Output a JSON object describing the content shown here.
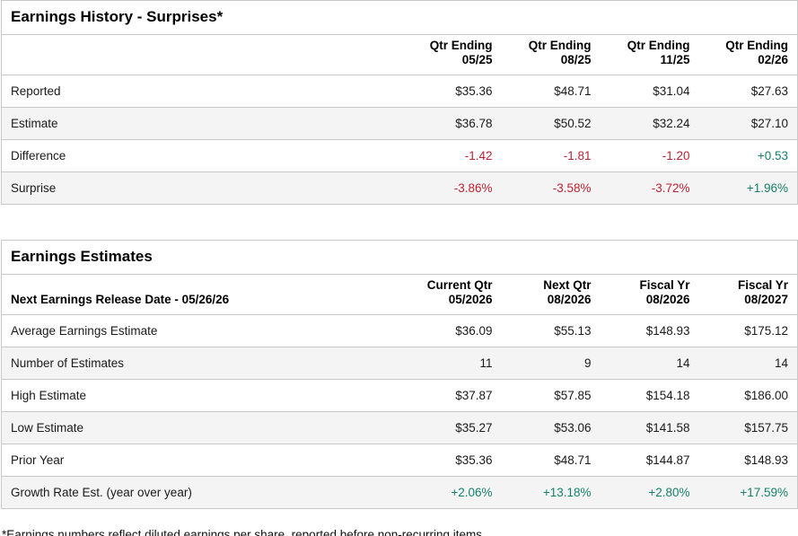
{
  "colors": {
    "positive": "#15806a",
    "negative": "#bf2333",
    "row_alt_background": "#f4f4f4",
    "border": "#c9c9c9"
  },
  "tables": [
    {
      "title": "Earnings History - Surprises*",
      "header_label": "",
      "columns": [
        {
          "line1": "Qtr Ending",
          "line2": "05/25"
        },
        {
          "line1": "Qtr Ending",
          "line2": "08/25"
        },
        {
          "line1": "Qtr Ending",
          "line2": "11/25"
        },
        {
          "line1": "Qtr Ending",
          "line2": "02/26"
        }
      ],
      "rows": [
        {
          "label": "Reported",
          "values": [
            "$35.36",
            "$48.71",
            "$31.04",
            "$27.63"
          ],
          "tones": [
            "",
            "",
            "",
            ""
          ]
        },
        {
          "label": "Estimate",
          "values": [
            "$36.78",
            "$50.52",
            "$32.24",
            "$27.10"
          ],
          "tones": [
            "",
            "",
            "",
            ""
          ]
        },
        {
          "label": "Difference",
          "values": [
            "-1.42",
            "-1.81",
            "-1.20",
            "+0.53"
          ],
          "tones": [
            "neg",
            "neg",
            "neg",
            "pos"
          ]
        },
        {
          "label": "Surprise",
          "values": [
            "-3.86%",
            "-3.58%",
            "-3.72%",
            "+1.96%"
          ],
          "tones": [
            "neg",
            "neg",
            "neg",
            "pos"
          ]
        }
      ]
    },
    {
      "title": "Earnings Estimates",
      "header_label": "Next Earnings Release Date - 05/26/26",
      "columns": [
        {
          "line1": "Current Qtr",
          "line2": "05/2026"
        },
        {
          "line1": "Next Qtr",
          "line2": "08/2026"
        },
        {
          "line1": "Fiscal Yr",
          "line2": "08/2026"
        },
        {
          "line1": "Fiscal Yr",
          "line2": "08/2027"
        }
      ],
      "rows": [
        {
          "label": "Average Earnings Estimate",
          "values": [
            "$36.09",
            "$55.13",
            "$148.93",
            "$175.12"
          ],
          "tones": [
            "",
            "",
            "",
            ""
          ]
        },
        {
          "label": "Number of Estimates",
          "values": [
            "11",
            "9",
            "14",
            "14"
          ],
          "tones": [
            "",
            "",
            "",
            ""
          ]
        },
        {
          "label": "High Estimate",
          "values": [
            "$37.87",
            "$57.85",
            "$154.18",
            "$186.00"
          ],
          "tones": [
            "",
            "",
            "",
            ""
          ]
        },
        {
          "label": "Low Estimate",
          "values": [
            "$35.27",
            "$53.06",
            "$141.58",
            "$157.75"
          ],
          "tones": [
            "",
            "",
            "",
            ""
          ]
        },
        {
          "label": "Prior Year",
          "values": [
            "$35.36",
            "$48.71",
            "$144.87",
            "$148.93"
          ],
          "tones": [
            "",
            "",
            "",
            ""
          ]
        },
        {
          "label": "Growth Rate Est. (year over year)",
          "values": [
            "+2.06%",
            "+13.18%",
            "+2.80%",
            "+17.59%"
          ],
          "tones": [
            "pos",
            "pos",
            "pos",
            "pos"
          ]
        }
      ]
    }
  ],
  "footnote": "*Earnings numbers reflect diluted earnings per share, reported before non-recurring items."
}
